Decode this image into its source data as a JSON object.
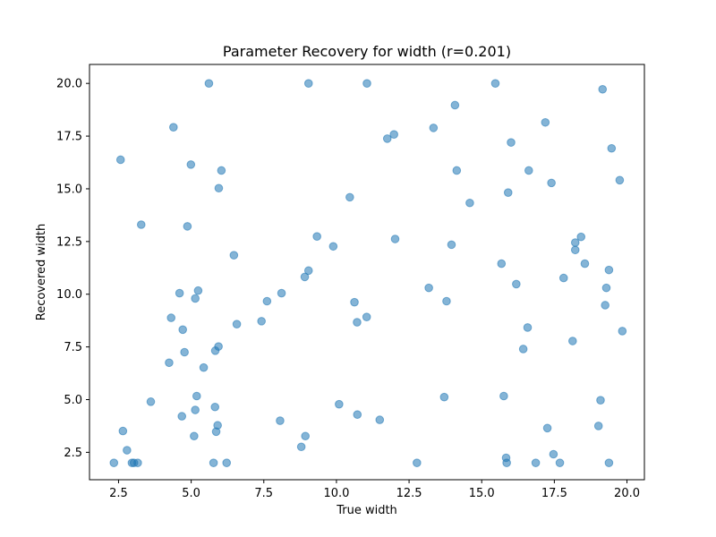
{
  "chart_data": {
    "type": "scatter",
    "title": "Parameter Recovery for width (r=0.201)",
    "xlabel": "True width",
    "ylabel": "Recovered width",
    "xlim": [
      1.5,
      20.6
    ],
    "ylim": [
      1.2,
      20.9
    ],
    "xticks": [
      2.5,
      5.0,
      7.5,
      10.0,
      12.5,
      15.0,
      17.5,
      20.0
    ],
    "xtick_labels": [
      "2.5",
      "5.0",
      "7.5",
      "10.0",
      "12.5",
      "15.0",
      "17.5",
      "20.0"
    ],
    "yticks": [
      2.5,
      5.0,
      7.5,
      10.0,
      12.5,
      15.0,
      17.5,
      20.0
    ],
    "ytick_labels": [
      "2.5",
      "5.0",
      "7.5",
      "10.0",
      "12.5",
      "15.0",
      "17.5",
      "20.0"
    ],
    "grid": false,
    "color": "#1f77b4",
    "points": [
      [
        5.61,
        20.0
      ],
      [
        9.04,
        20.0
      ],
      [
        11.05,
        20.0
      ],
      [
        15.47,
        20.0
      ],
      [
        19.16,
        19.72
      ],
      [
        14.08,
        18.97
      ],
      [
        4.39,
        17.92
      ],
      [
        13.34,
        17.89
      ],
      [
        17.19,
        18.15
      ],
      [
        11.98,
        17.58
      ],
      [
        11.75,
        17.38
      ],
      [
        16.01,
        17.2
      ],
      [
        19.47,
        16.92
      ],
      [
        2.57,
        16.38
      ],
      [
        4.99,
        16.15
      ],
      [
        6.04,
        15.87
      ],
      [
        14.14,
        15.87
      ],
      [
        16.62,
        15.87
      ],
      [
        19.75,
        15.41
      ],
      [
        17.4,
        15.28
      ],
      [
        5.95,
        15.03
      ],
      [
        15.91,
        14.82
      ],
      [
        10.46,
        14.6
      ],
      [
        14.59,
        14.33
      ],
      [
        3.28,
        13.3
      ],
      [
        4.87,
        13.22
      ],
      [
        9.33,
        12.74
      ],
      [
        12.02,
        12.62
      ],
      [
        18.42,
        12.72
      ],
      [
        9.89,
        12.27
      ],
      [
        13.96,
        12.35
      ],
      [
        18.22,
        12.45
      ],
      [
        18.22,
        12.1
      ],
      [
        6.47,
        11.85
      ],
      [
        15.68,
        11.45
      ],
      [
        18.55,
        11.45
      ],
      [
        9.04,
        11.12
      ],
      [
        19.38,
        11.15
      ],
      [
        8.91,
        10.82
      ],
      [
        17.82,
        10.77
      ],
      [
        16.19,
        10.48
      ],
      [
        13.18,
        10.3
      ],
      [
        19.29,
        10.3
      ],
      [
        5.24,
        10.17
      ],
      [
        4.6,
        10.05
      ],
      [
        8.11,
        10.05
      ],
      [
        5.14,
        9.8
      ],
      [
        7.61,
        9.67
      ],
      [
        10.62,
        9.62
      ],
      [
        13.79,
        9.67
      ],
      [
        19.25,
        9.48
      ],
      [
        11.04,
        8.92
      ],
      [
        4.31,
        8.88
      ],
      [
        7.42,
        8.72
      ],
      [
        10.71,
        8.67
      ],
      [
        6.57,
        8.58
      ],
      [
        16.58,
        8.42
      ],
      [
        4.71,
        8.32
      ],
      [
        19.84,
        8.25
      ],
      [
        18.13,
        7.78
      ],
      [
        5.94,
        7.52
      ],
      [
        5.83,
        7.32
      ],
      [
        16.43,
        7.4
      ],
      [
        4.77,
        7.25
      ],
      [
        4.24,
        6.75
      ],
      [
        5.43,
        6.52
      ],
      [
        5.19,
        5.17
      ],
      [
        13.71,
        5.12
      ],
      [
        15.76,
        5.17
      ],
      [
        19.09,
        4.97
      ],
      [
        3.61,
        4.9
      ],
      [
        10.09,
        4.78
      ],
      [
        5.82,
        4.65
      ],
      [
        4.68,
        4.21
      ],
      [
        5.14,
        4.51
      ],
      [
        10.72,
        4.29
      ],
      [
        8.06,
        4.0
      ],
      [
        11.49,
        4.04
      ],
      [
        5.91,
        3.78
      ],
      [
        17.26,
        3.65
      ],
      [
        19.02,
        3.75
      ],
      [
        2.65,
        3.51
      ],
      [
        5.86,
        3.48
      ],
      [
        5.1,
        3.27
      ],
      [
        8.93,
        3.27
      ],
      [
        8.79,
        2.76
      ],
      [
        2.79,
        2.6
      ],
      [
        17.47,
        2.41
      ],
      [
        15.84,
        2.24
      ],
      [
        2.34,
        2.0
      ],
      [
        2.96,
        2.0
      ],
      [
        3.03,
        2.0
      ],
      [
        3.16,
        2.0
      ],
      [
        5.77,
        2.0
      ],
      [
        6.22,
        2.0
      ],
      [
        12.77,
        2.0
      ],
      [
        15.86,
        2.0
      ],
      [
        16.86,
        2.0
      ],
      [
        17.69,
        2.0
      ],
      [
        19.38,
        2.0
      ]
    ]
  }
}
